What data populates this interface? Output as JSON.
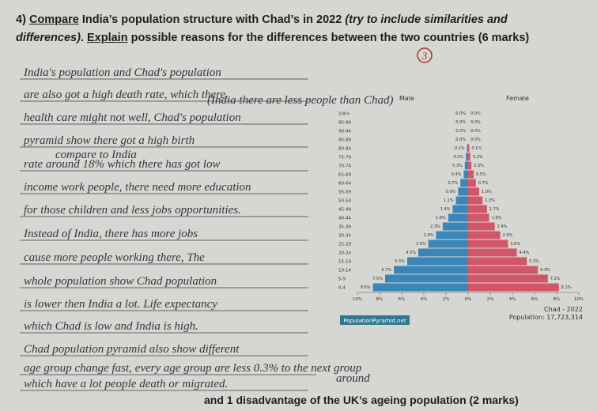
{
  "question": {
    "parts": [
      "4)",
      "Compare",
      " India’s population structure with Chad’s in 2022 ",
      "(try to include similarities and differences)",
      ". ",
      "Explain",
      " possible reasons for the differences between the two countries (6 marks)"
    ],
    "mark": "3"
  },
  "answer": {
    "lines": [
      "India's population and Chad's population",
      "are also got a high death rate, which there.",
      "health care might not well, Chad's population",
      "pyramid show there got a high birth",
      "rate around 18% which there has got low",
      "income work people, there need more education",
      "for those children and less jobs opportunities.",
      "Instead of India, there has more jobs",
      "cause more people working there, The",
      "whole population show Chad population",
      "is lower then India a lot. Life expectancy",
      "which Chad is low and India is high.",
      "Chad population pyramid also show different",
      "age group change fast, every age group are less 0.3% to the next group",
      "which have a lot people death or migrated."
    ],
    "notes": [
      "(India there are less people than Chad)",
      "compare to India",
      "around"
    ]
  },
  "chart_data": {
    "type": "pyramid",
    "title": "Chad - 2022",
    "subtitle": "Population: 17,723,314",
    "source": "PopulationPyramid.net",
    "categories": [
      "100+",
      "95-99",
      "90-94",
      "85-89",
      "80-84",
      "75-79",
      "70-74",
      "65-69",
      "60-64",
      "55-59",
      "50-54",
      "45-49",
      "40-44",
      "35-39",
      "30-34",
      "25-29",
      "20-24",
      "15-19",
      "10-14",
      "5-9",
      "0-4"
    ],
    "series": [
      {
        "name": "Male",
        "color": "#3a86b8",
        "values": [
          0,
          0,
          0,
          0,
          0.1,
          0.2,
          0.3,
          0.4,
          0.7,
          0.9,
          1.1,
          1.4,
          1.8,
          2.3,
          2.9,
          3.6,
          4.5,
          5.5,
          6.7,
          7.5,
          8.6
        ],
        "value_labels": [
          "0.0%",
          "0.0%",
          "0.0%",
          "0.0%",
          "0.1%",
          "0.2%",
          "0.3%",
          "0.4%",
          "0.7%",
          "0.9%",
          "1.1%",
          "1.4%",
          "1.8%",
          "2.3%",
          "2.9%",
          "3.6%",
          "4.5%",
          "5.5%",
          "6.7%",
          "7.5%",
          "8.6%"
        ]
      },
      {
        "name": "Female",
        "color": "#d2566a",
        "values": [
          0,
          0,
          0,
          0,
          0.1,
          0.2,
          0.3,
          0.5,
          0.7,
          1.0,
          1.3,
          1.7,
          1.9,
          2.4,
          2.9,
          3.6,
          4.4,
          5.3,
          6.3,
          7.2,
          8.2
        ],
        "value_labels": [
          "0.0%",
          "0.0%",
          "0.0%",
          "0.0%",
          "0.1%",
          "0.2%",
          "0.3%",
          "0.5%",
          "0.7%",
          "1.0%",
          "1.3%",
          "1.7%",
          "1.9%",
          "2.4%",
          "2.9%",
          "3.6%",
          "4.4%",
          "5.3%",
          "6.3%",
          "7.2%",
          "8.2%"
        ]
      }
    ],
    "xlim": [
      -10,
      10
    ],
    "xticks": [
      {
        "value": -10,
        "label": "10%"
      },
      {
        "value": -8,
        "label": "8%"
      },
      {
        "value": -6,
        "label": "6%"
      },
      {
        "value": -4,
        "label": "4%"
      },
      {
        "value": -2,
        "label": "2%"
      },
      {
        "value": 0,
        "label": "0%"
      },
      {
        "value": 2,
        "label": "2%"
      },
      {
        "value": 4,
        "label": "4%"
      },
      {
        "value": 6,
        "label": "6%"
      },
      {
        "value": 8,
        "label": "8%"
      },
      {
        "value": 10,
        "label": "10%"
      }
    ]
  },
  "footer": "and 1 disadvantage of the UK’s ageing population (2 marks)"
}
